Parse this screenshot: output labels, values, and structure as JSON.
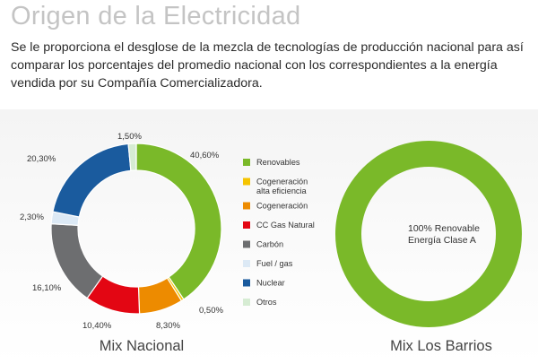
{
  "header": {
    "title": "Origen de la Electricidad",
    "intro": "Se le proporciona el desglose de la mezcla de tecnologías de producción nacional para así comparar los porcentajes del promedio nacional con los correspondientes a la energía vendida por su Compañía Comercializadora."
  },
  "chart_data": [
    {
      "type": "pie",
      "title": "Mix Nacional",
      "donut": true,
      "legend_position": "right",
      "categories": [
        "Renovables",
        "Cogeneración alta eficiencia",
        "Cogeneración",
        "CC Gas Natural",
        "Carbón",
        "Fuel / gas",
        "Nuclear",
        "Otros"
      ],
      "values": [
        40.6,
        0.5,
        8.3,
        10.4,
        16.1,
        2.3,
        20.3,
        1.5
      ],
      "labels": [
        "40,60%",
        "0,50%",
        "8,30%",
        "10,40%",
        "16,10%",
        "2,30%",
        "20,30%",
        "1,50%"
      ],
      "colors": [
        "#7ab929",
        "#f5c400",
        "#ed8b00",
        "#e30613",
        "#6d6e70",
        "#dce9f5",
        "#1a5b9e",
        "#d6ecd3"
      ]
    },
    {
      "type": "pie",
      "title": "Mix Los Barrios",
      "donut": true,
      "categories": [
        "Renovable"
      ],
      "values": [
        100
      ],
      "colors": [
        "#7ab929"
      ],
      "center_text": [
        "100% Renovable",
        "Energía Clase A"
      ]
    }
  ],
  "legend": [
    {
      "lines": [
        "Renovables"
      ],
      "color": "#7ab929"
    },
    {
      "lines": [
        "Cogeneración",
        "alta eficiencia"
      ],
      "color": "#f5c400"
    },
    {
      "lines": [
        "Cogeneración"
      ],
      "color": "#ed8b00"
    },
    {
      "lines": [
        "CC Gas Natural"
      ],
      "color": "#e30613"
    },
    {
      "lines": [
        "Carbón"
      ],
      "color": "#6d6e70"
    },
    {
      "lines": [
        "Fuel / gas"
      ],
      "color": "#dce9f5"
    },
    {
      "lines": [
        "Nuclear"
      ],
      "color": "#1a5b9e"
    },
    {
      "lines": [
        "Otros"
      ],
      "color": "#d6ecd3"
    }
  ]
}
